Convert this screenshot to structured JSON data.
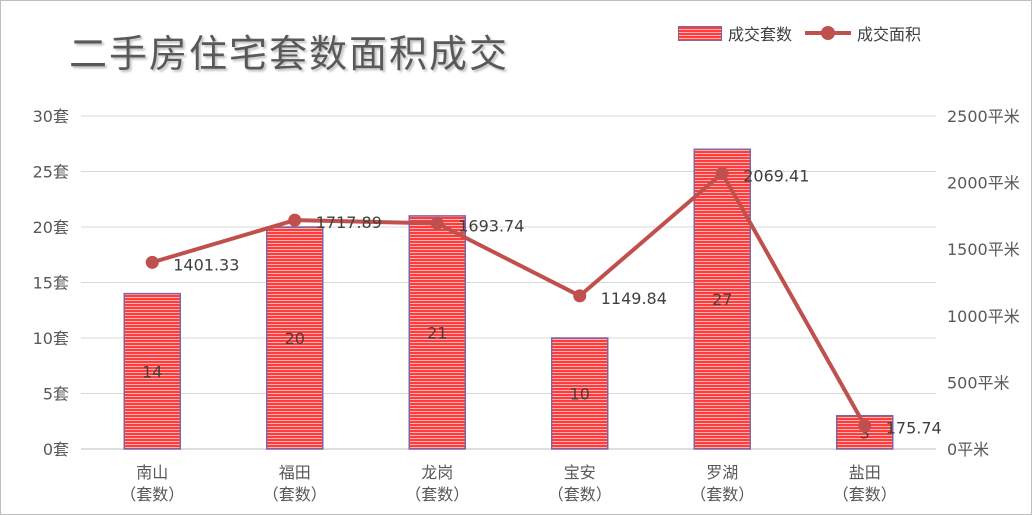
{
  "chart_data": {
    "type": "bar+line",
    "title": "二手房住宅套数面积成交",
    "categories": [
      "南山\n（套数）",
      "福田\n（套数）",
      "龙岗\n（套数）",
      "宝安\n（套数）",
      "罗湖\n（套数）",
      "盐田\n（套数）"
    ],
    "series": [
      {
        "name": "成交套数",
        "type": "bar",
        "axis": "left",
        "values": [
          14,
          20,
          21,
          10,
          27,
          3
        ],
        "data_labels": [
          "14",
          "20",
          "21",
          "10",
          "27",
          "3"
        ]
      },
      {
        "name": "成交面积",
        "type": "line",
        "axis": "right",
        "values": [
          1401.33,
          1717.89,
          1693.74,
          1149.84,
          2069.41,
          175.74
        ],
        "data_labels": [
          "1401.33",
          "1717.89",
          "1693.74",
          "1149.84",
          "2069.41",
          "175.74"
        ]
      }
    ],
    "y_left": {
      "ylim": [
        0,
        30
      ],
      "ticks": [
        0,
        5,
        10,
        15,
        20,
        25,
        30
      ],
      "tick_labels": [
        "0套",
        "5套",
        "10套",
        "15套",
        "20套",
        "25套",
        "30套"
      ]
    },
    "y_right": {
      "ylim": [
        0,
        2500
      ],
      "ticks": [
        0,
        500,
        1000,
        1500,
        2000,
        2500
      ],
      "tick_labels": [
        "0平米",
        "500平米",
        "1000平米",
        "1500平米",
        "2000平米",
        "2500平米"
      ]
    },
    "grid": true,
    "legend_position": "top-right",
    "colors": {
      "bar_fill": "#ff3b3b",
      "bar_stripe": "#ffb3b3",
      "bar_border": "#8064a2",
      "line": "#c0504d",
      "grid": "#d9d9d9",
      "axis_text": "#595959",
      "label_text": "#404040"
    }
  }
}
